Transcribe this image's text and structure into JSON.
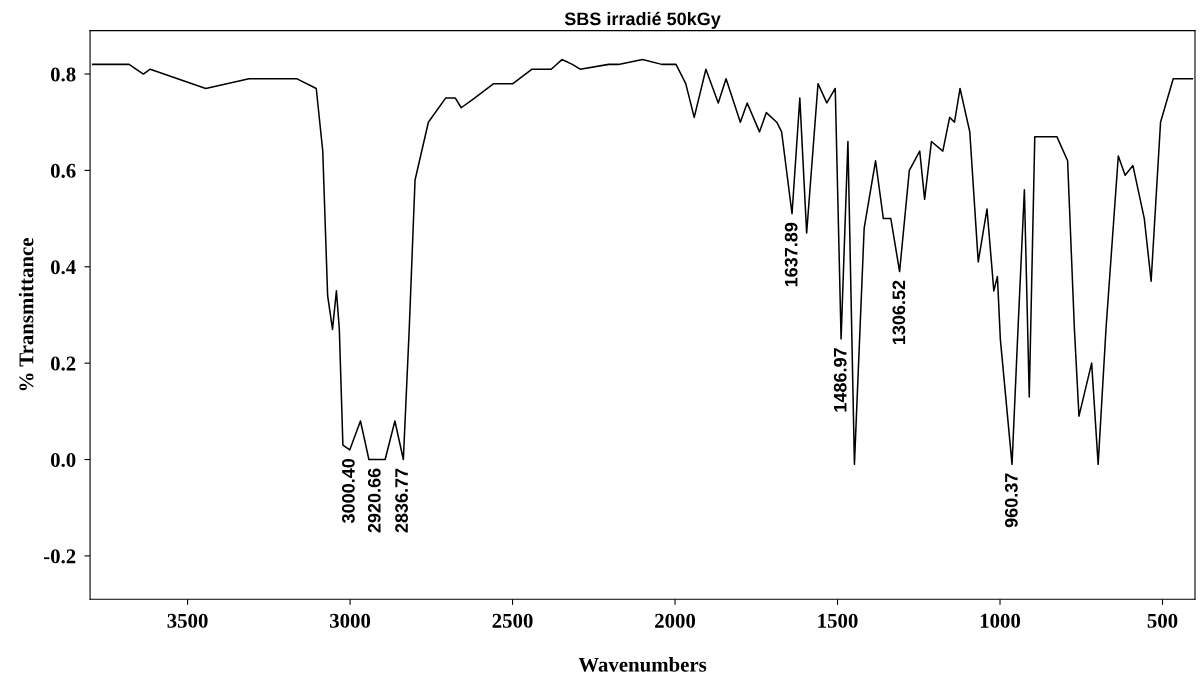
{
  "chart_data": {
    "type": "line",
    "title": "SBS irradié 50kGy",
    "xlabel": "Wavenumbers",
    "ylabel": "% Transmittance",
    "xlim": [
      3800,
      400
    ],
    "ylim": [
      -0.29,
      0.89
    ],
    "xticks": [
      3500,
      3000,
      2500,
      2000,
      1500,
      1000,
      500
    ],
    "yticks": [
      -0.2,
      {
        "value": 0,
        "label": "0.0"
      },
      0.2,
      0.4,
      0.6,
      0.8
    ],
    "grid": false,
    "legend": false,
    "marker": "none",
    "line_style": "solid",
    "series": [
      {
        "color": "#000000",
        "x": [
          3792,
          3680,
          3636,
          3615,
          3444,
          3311,
          3163,
          3104,
          3084,
          3069,
          3054,
          3042,
          3033,
          3022,
          3001,
          2968,
          2942,
          2892,
          2862,
          2836,
          2818,
          2800,
          2759,
          2706,
          2676,
          2658,
          2617,
          2558,
          2499,
          2440,
          2381,
          2348,
          2316,
          2292,
          2204,
          2174,
          2100,
          2041,
          1997,
          1967,
          1941,
          1905,
          1867,
          1843,
          1799,
          1778,
          1740,
          1719,
          1687,
          1672,
          1640,
          1616,
          1595,
          1560,
          1533,
          1507,
          1489,
          1468,
          1448,
          1418,
          1383,
          1359,
          1336,
          1309,
          1279,
          1247,
          1232,
          1211,
          1176,
          1155,
          1140,
          1123,
          1093,
          1067,
          1040,
          1019,
          1008,
          999,
          963,
          946,
          925,
          910,
          893,
          875,
          825,
          792,
          771,
          757,
          718,
          698,
          674,
          636,
          615,
          591,
          556,
          535,
          506,
          467,
          444,
          408
        ],
        "values": [
          0.82,
          0.82,
          0.8,
          0.81,
          0.77,
          0.79,
          0.79,
          0.77,
          0.64,
          0.34,
          0.27,
          0.35,
          0.27,
          0.03,
          0.02,
          0.08,
          0.0,
          0.0,
          0.08,
          0.0,
          0.27,
          0.58,
          0.7,
          0.75,
          0.75,
          0.73,
          0.75,
          0.78,
          0.78,
          0.81,
          0.81,
          0.83,
          0.82,
          0.81,
          0.82,
          0.82,
          0.83,
          0.82,
          0.82,
          0.78,
          0.71,
          0.81,
          0.74,
          0.79,
          0.7,
          0.74,
          0.68,
          0.72,
          0.7,
          0.68,
          0.51,
          0.75,
          0.47,
          0.78,
          0.74,
          0.77,
          0.25,
          0.66,
          -0.01,
          0.48,
          0.62,
          0.5,
          0.5,
          0.39,
          0.6,
          0.64,
          0.54,
          0.66,
          0.64,
          0.71,
          0.7,
          0.77,
          0.68,
          0.41,
          0.52,
          0.35,
          0.38,
          0.25,
          -0.01,
          0.25,
          0.56,
          0.13,
          0.67,
          0.67,
          0.67,
          0.62,
          0.27,
          0.09,
          0.2,
          -0.01,
          0.27,
          0.63,
          0.59,
          0.61,
          0.5,
          0.37,
          0.7,
          0.79,
          0.79,
          0.79
        ]
      }
    ],
    "annotations": [
      {
        "text": "3000.40",
        "x": 3000.4,
        "y": 0.02
      },
      {
        "text": "2920.66",
        "x": 2920.66,
        "y": 0.0
      },
      {
        "text": "2836.77",
        "x": 2836.77,
        "y": 0.0
      },
      {
        "text": "1637.89",
        "x": 1637.89,
        "y": 0.51
      },
      {
        "text": "1486.97",
        "x": 1486.97,
        "y": 0.25
      },
      {
        "text": "1306.52",
        "x": 1306.52,
        "y": 0.39
      },
      {
        "text": "960.37",
        "x": 960.37,
        "y": -0.01
      }
    ]
  }
}
